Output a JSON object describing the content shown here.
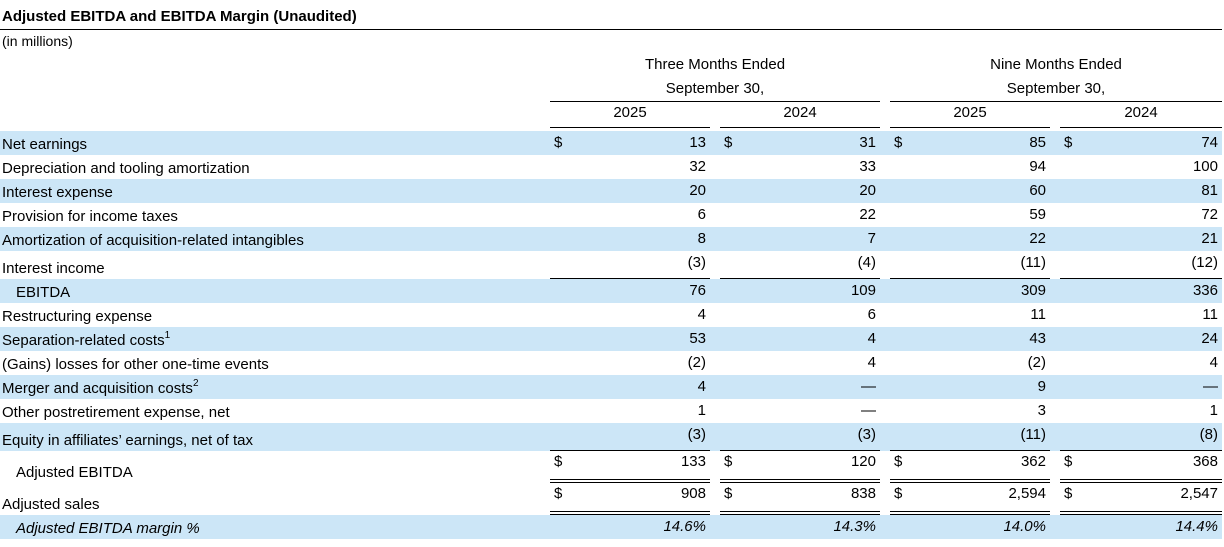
{
  "title": "Adjusted EBITDA and EBITDA Margin (Unaudited)",
  "units": "(in millions)",
  "groups": [
    {
      "line1": "Three Months Ended",
      "line2": "September 30,"
    },
    {
      "line1": "Nine Months Ended",
      "line2": "September 30,"
    }
  ],
  "years": [
    "2025",
    "2024",
    "2025",
    "2024"
  ],
  "currency": "$",
  "rows": [
    {
      "label": "Net earnings",
      "values": [
        "13",
        "31",
        "85",
        "74"
      ]
    },
    {
      "label": "Depreciation and tooling amortization",
      "values": [
        "32",
        "33",
        "94",
        "100"
      ]
    },
    {
      "label": "Interest expense",
      "values": [
        "20",
        "20",
        "60",
        "81"
      ]
    },
    {
      "label": "Provision for income taxes",
      "values": [
        "6",
        "22",
        "59",
        "72"
      ]
    },
    {
      "label": "Amortization of acquisition-related intangibles",
      "values": [
        "8",
        "7",
        "22",
        "21"
      ]
    },
    {
      "label": "Interest income",
      "values": [
        "(3)",
        "(4)",
        "(11)",
        "(12)"
      ]
    },
    {
      "label": "EBITDA",
      "values": [
        "76",
        "109",
        "309",
        "336"
      ]
    },
    {
      "label": "Restructuring expense",
      "values": [
        "4",
        "6",
        "11",
        "11"
      ]
    },
    {
      "label": "Separation-related costs",
      "footnote": "1",
      "values": [
        "53",
        "4",
        "43",
        "24"
      ]
    },
    {
      "label": "(Gains) losses for other one-time events",
      "values": [
        "(2)",
        "4",
        "(2)",
        "4"
      ]
    },
    {
      "label": "Merger and acquisition costs",
      "footnote": "2",
      "values": [
        "4",
        "—",
        "9",
        "—"
      ]
    },
    {
      "label": "Other postretirement expense, net",
      "values": [
        "1",
        "—",
        "3",
        "1"
      ]
    },
    {
      "label": "Equity in affiliates’ earnings, net of tax",
      "values": [
        "(3)",
        "(3)",
        "(11)",
        "(8)"
      ]
    },
    {
      "label": "Adjusted EBITDA",
      "values": [
        "133",
        "120",
        "362",
        "368"
      ]
    },
    {
      "label": "Adjusted sales",
      "values": [
        "908",
        "838",
        "2,594",
        "2,547"
      ]
    },
    {
      "label": "Adjusted EBITDA margin %",
      "values": [
        "14.6%",
        "14.3%",
        "14.0%",
        "14.4%"
      ]
    }
  ]
}
